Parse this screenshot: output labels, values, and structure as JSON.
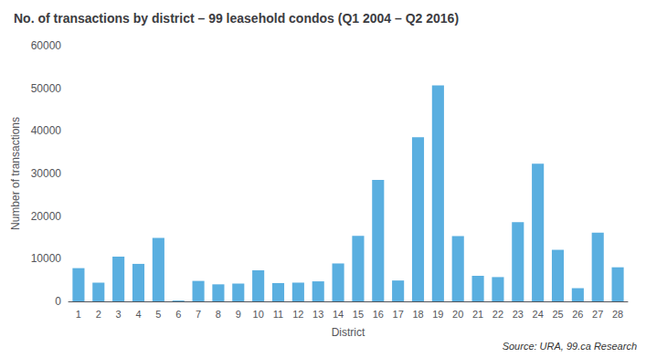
{
  "chart_data": {
    "type": "bar",
    "title": "No. of transactions by district – 99 leasehold condos (Q1 2004 – Q2 2016)",
    "xlabel": "District",
    "ylabel": "Number of transactions",
    "annotations": [
      "Source: URA, 99.ca Research"
    ],
    "categories": [
      "1",
      "2",
      "3",
      "4",
      "5",
      "6",
      "7",
      "8",
      "9",
      "10",
      "11",
      "12",
      "13",
      "14",
      "15",
      "16",
      "17",
      "18",
      "19",
      "20",
      "21",
      "22",
      "23",
      "24",
      "25",
      "26",
      "27",
      "28"
    ],
    "values": [
      7800,
      4400,
      10500,
      8800,
      14900,
      200,
      4800,
      4000,
      4200,
      7300,
      4300,
      4400,
      4700,
      8900,
      15400,
      28500,
      4900,
      38500,
      50700,
      15300,
      6000,
      5700,
      18600,
      32300,
      12100,
      3100,
      16100,
      8000
    ],
    "color": "#5aafe0",
    "ylim": [
      0,
      60000
    ],
    "yticks": [
      0,
      10000,
      20000,
      30000,
      40000,
      50000,
      60000
    ],
    "grid": false
  }
}
